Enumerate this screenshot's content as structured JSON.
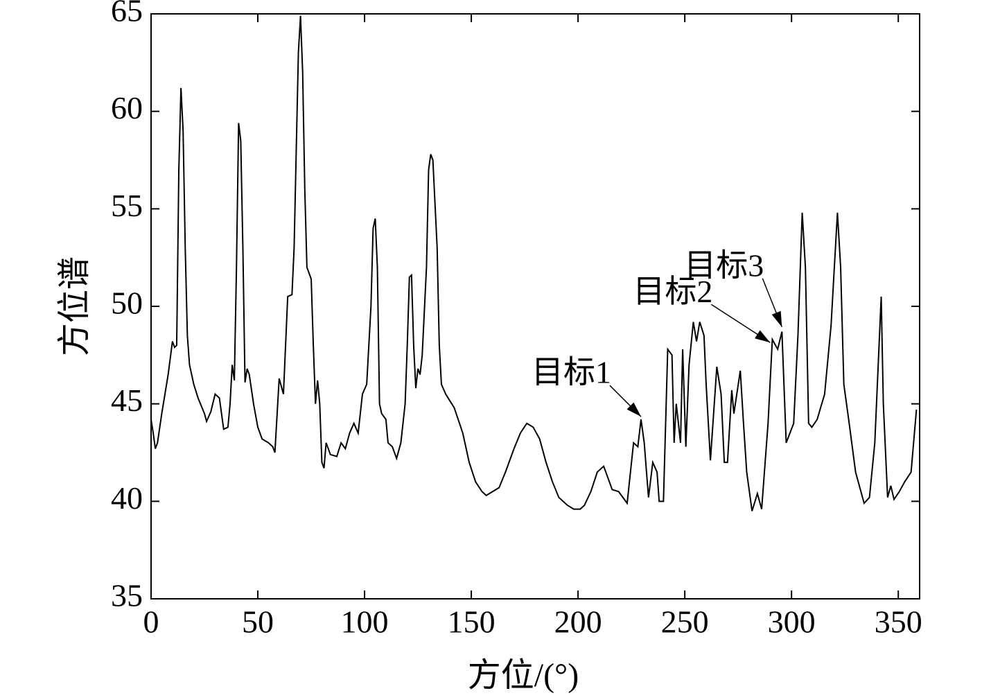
{
  "chart_data": {
    "type": "line",
    "xlabel": "方位/(°)",
    "ylabel": "方位谱",
    "x": [
      0,
      1,
      2,
      3,
      5,
      8,
      10,
      11,
      12,
      13,
      14,
      15,
      16,
      17,
      18,
      20,
      22,
      25,
      26,
      28,
      30,
      32,
      34,
      36,
      37,
      38,
      39,
      40,
      41,
      42,
      43,
      44,
      45,
      46,
      48,
      50,
      52,
      55,
      57,
      58,
      60,
      62,
      63,
      64,
      66,
      67,
      68,
      69,
      70,
      71,
      72,
      73,
      75,
      76,
      77,
      78,
      79,
      80,
      81,
      82,
      84,
      87,
      89,
      91,
      93,
      95,
      97,
      99,
      101,
      103,
      104,
      105,
      106,
      107,
      108,
      110,
      111,
      113,
      115,
      117,
      119,
      120,
      121,
      122,
      123,
      124,
      125,
      126,
      127,
      129,
      130,
      131,
      132,
      134,
      135,
      136,
      138,
      142,
      146,
      149,
      152,
      155,
      157,
      160,
      163,
      166,
      170,
      173,
      176,
      179,
      182,
      185,
      188,
      191,
      195,
      198,
      201,
      203,
      206,
      209,
      212,
      214,
      216,
      219,
      223,
      226,
      228,
      229.5,
      231,
      233,
      235,
      237,
      238,
      240,
      242,
      244,
      245,
      246,
      248,
      249,
      250.5,
      252,
      254,
      255.5,
      257,
      259,
      260,
      262,
      265,
      267,
      268.5,
      270,
      272,
      273,
      276,
      277.5,
      279,
      281.5,
      284,
      286,
      289,
      291,
      293.5,
      295.5,
      297.5,
      301,
      303,
      305,
      306.5,
      308,
      309.5,
      312,
      315.5,
      318.5,
      321.5,
      323,
      324.5,
      327,
      330,
      334,
      336.5,
      339,
      341,
      342,
      343,
      345,
      346.5,
      348,
      350.5,
      353,
      356,
      358.5
    ],
    "values": [
      44.2,
      43.5,
      42.7,
      43.0,
      44.5,
      46.5,
      48.2,
      47.9,
      48.0,
      57,
      61.2,
      59,
      53,
      48.5,
      47,
      46,
      45.3,
      44.5,
      44.1,
      44.6,
      45.5,
      45.3,
      43.7,
      43.8,
      45,
      47,
      46.2,
      52,
      59.4,
      58.5,
      53,
      46.1,
      46.8,
      46.5,
      45,
      43.8,
      43.2,
      43,
      42.8,
      42.5,
      46.3,
      45.5,
      48,
      50.5,
      50.6,
      53,
      58,
      63,
      64.9,
      62,
      56,
      52,
      51.4,
      48,
      45,
      46.2,
      45,
      42,
      41.7,
      43,
      42.4,
      42.3,
      43,
      42.7,
      43.5,
      44,
      43.5,
      45.5,
      46,
      50,
      54,
      54.5,
      52,
      45,
      44.5,
      44.2,
      43,
      42.8,
      42.2,
      43,
      45,
      48,
      51.5,
      51.6,
      48,
      45.8,
      46.8,
      46.5,
      47.5,
      52,
      57,
      57.8,
      57.5,
      53,
      48,
      46,
      45.5,
      44.8,
      43.5,
      42,
      41,
      40.5,
      40.3,
      40.5,
      40.7,
      41.5,
      42.7,
      43.5,
      44,
      43.8,
      43.2,
      42,
      41,
      40.2,
      39.8,
      39.6,
      39.6,
      39.8,
      40.5,
      41.5,
      41.8,
      41.2,
      40.6,
      40.5,
      39.9,
      43,
      42.8,
      44.2,
      43,
      40.2,
      42,
      41.5,
      40,
      40,
      47.8,
      47.5,
      43,
      45,
      43,
      47.8,
      42.8,
      47,
      49.2,
      48.2,
      49.2,
      48.5,
      46,
      42.1,
      46.9,
      45.5,
      42,
      42,
      45.7,
      44.5,
      46.7,
      44,
      41.5,
      39.5,
      40.4,
      39.6,
      44,
      48.3,
      47.8,
      48.7,
      43,
      44,
      48.5,
      54.8,
      52,
      44,
      43.8,
      44.2,
      45.5,
      49,
      54.8,
      52,
      46,
      44,
      41.5,
      39.9,
      40.2,
      43,
      48,
      50.5,
      45,
      40.2,
      40.8,
      40.1,
      40.5,
      41,
      41.5,
      44.7
    ],
    "color": "#000000",
    "xlim": [
      0,
      360
    ],
    "xticks": [
      0,
      50,
      100,
      150,
      200,
      250,
      300,
      350
    ],
    "ylim": [
      35,
      65
    ],
    "yticks": [
      35,
      40,
      45,
      50,
      55,
      60,
      65
    ],
    "annotations": [
      {
        "text": "目标1",
        "x": 229.5,
        "y": 44.2
      },
      {
        "text": "目标2",
        "x": 290,
        "y": 48
      },
      {
        "text": "目标3",
        "x": 295.5,
        "y": 48.8
      }
    ]
  }
}
